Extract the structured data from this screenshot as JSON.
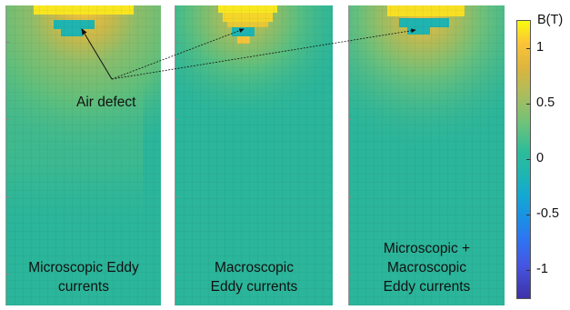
{
  "panels": [
    {
      "caption_lines": [
        "Microscopic Eddy",
        "currents"
      ]
    },
    {
      "caption_lines": [
        "Macroscopic",
        "Eddy currents"
      ]
    },
    {
      "caption_lines": [
        "Microscopic +",
        "Macroscopic",
        "Eddy currents"
      ]
    }
  ],
  "annotation": {
    "label": "Air defect"
  },
  "colorbar": {
    "title": "B(T)",
    "ticks": [
      "1",
      "0.5",
      "0",
      "-0.5",
      "-1"
    ],
    "colors": [
      "#f9fb0e",
      "#2dbc9a",
      "#3e32a8"
    ]
  }
}
